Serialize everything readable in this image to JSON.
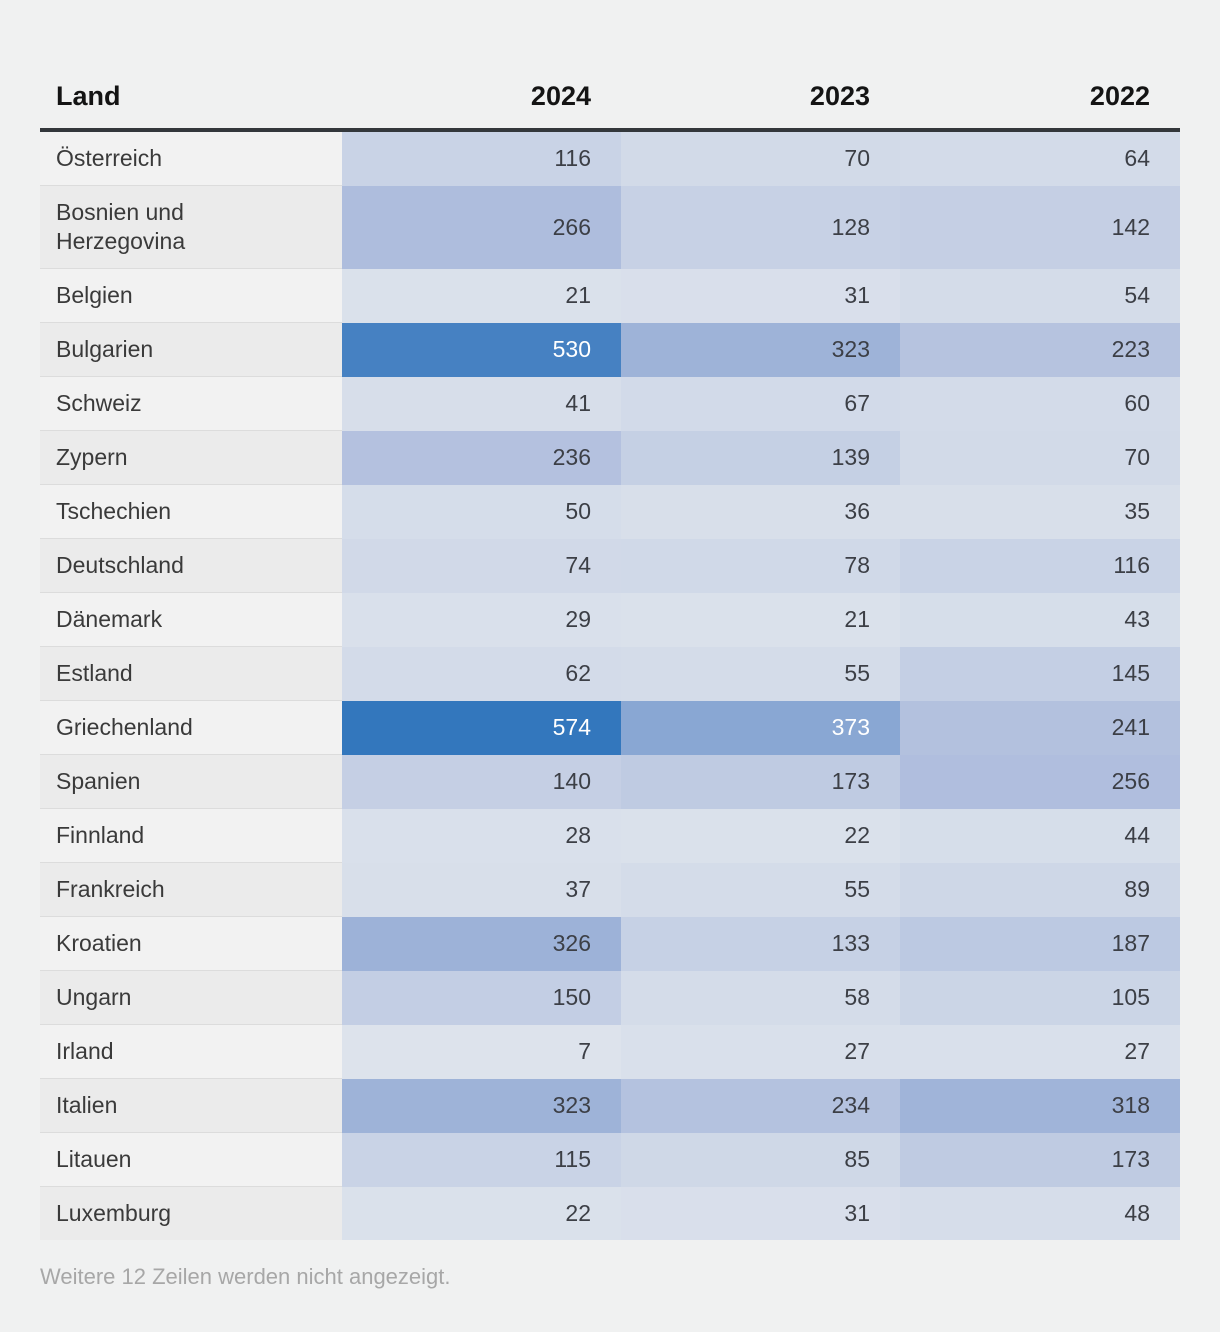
{
  "header": {
    "land": "Land",
    "years": [
      "2024",
      "2023",
      "2022"
    ]
  },
  "footer": {
    "note": "Weitere 12 Zeilen werden nicht angezeigt."
  },
  "colors": {
    "page_background": "#f0f1f1",
    "header_rule": "#33373b",
    "label_odd_bg": "#f2f2f2",
    "label_even_bg": "#ebebeb",
    "label_divider": "#dcdcdc",
    "dark_text": "#3c3f46",
    "light_text": "#ffffff",
    "light_text_threshold": 350,
    "heatmap_stops": [
      {
        "value": 7,
        "color": "#dde3ec"
      },
      {
        "value": 300,
        "color": "#a8b8db"
      },
      {
        "value": 574,
        "color": "#3377bd"
      }
    ]
  },
  "chart_data": {
    "type": "heatmap",
    "title": "",
    "columns": [
      "Land",
      "2024",
      "2023",
      "2022"
    ],
    "value_range": [
      7,
      574
    ],
    "rows": [
      {
        "land": "Österreich",
        "values": [
          116,
          70,
          64
        ]
      },
      {
        "land": "Bosnien und Herzegovina",
        "values": [
          266,
          128,
          142
        ]
      },
      {
        "land": "Belgien",
        "values": [
          21,
          31,
          54
        ]
      },
      {
        "land": "Bulgarien",
        "values": [
          530,
          323,
          223
        ]
      },
      {
        "land": "Schweiz",
        "values": [
          41,
          67,
          60
        ]
      },
      {
        "land": "Zypern",
        "values": [
          236,
          139,
          70
        ]
      },
      {
        "land": "Tschechien",
        "values": [
          50,
          36,
          35
        ]
      },
      {
        "land": "Deutschland",
        "values": [
          74,
          78,
          116
        ]
      },
      {
        "land": "Dänemark",
        "values": [
          29,
          21,
          43
        ]
      },
      {
        "land": "Estland",
        "values": [
          62,
          55,
          145
        ]
      },
      {
        "land": "Griechenland",
        "values": [
          574,
          373,
          241
        ]
      },
      {
        "land": "Spanien",
        "values": [
          140,
          173,
          256
        ]
      },
      {
        "land": "Finnland",
        "values": [
          28,
          22,
          44
        ]
      },
      {
        "land": "Frankreich",
        "values": [
          37,
          55,
          89
        ]
      },
      {
        "land": "Kroatien",
        "values": [
          326,
          133,
          187
        ]
      },
      {
        "land": "Ungarn",
        "values": [
          150,
          58,
          105
        ]
      },
      {
        "land": "Irland",
        "values": [
          7,
          27,
          27
        ]
      },
      {
        "land": "Italien",
        "values": [
          323,
          234,
          318
        ]
      },
      {
        "land": "Litauen",
        "values": [
          115,
          85,
          173
        ]
      },
      {
        "land": "Luxemburg",
        "values": [
          22,
          31,
          48
        ]
      }
    ],
    "note": "Weitere 12 Zeilen werden nicht angezeigt."
  }
}
